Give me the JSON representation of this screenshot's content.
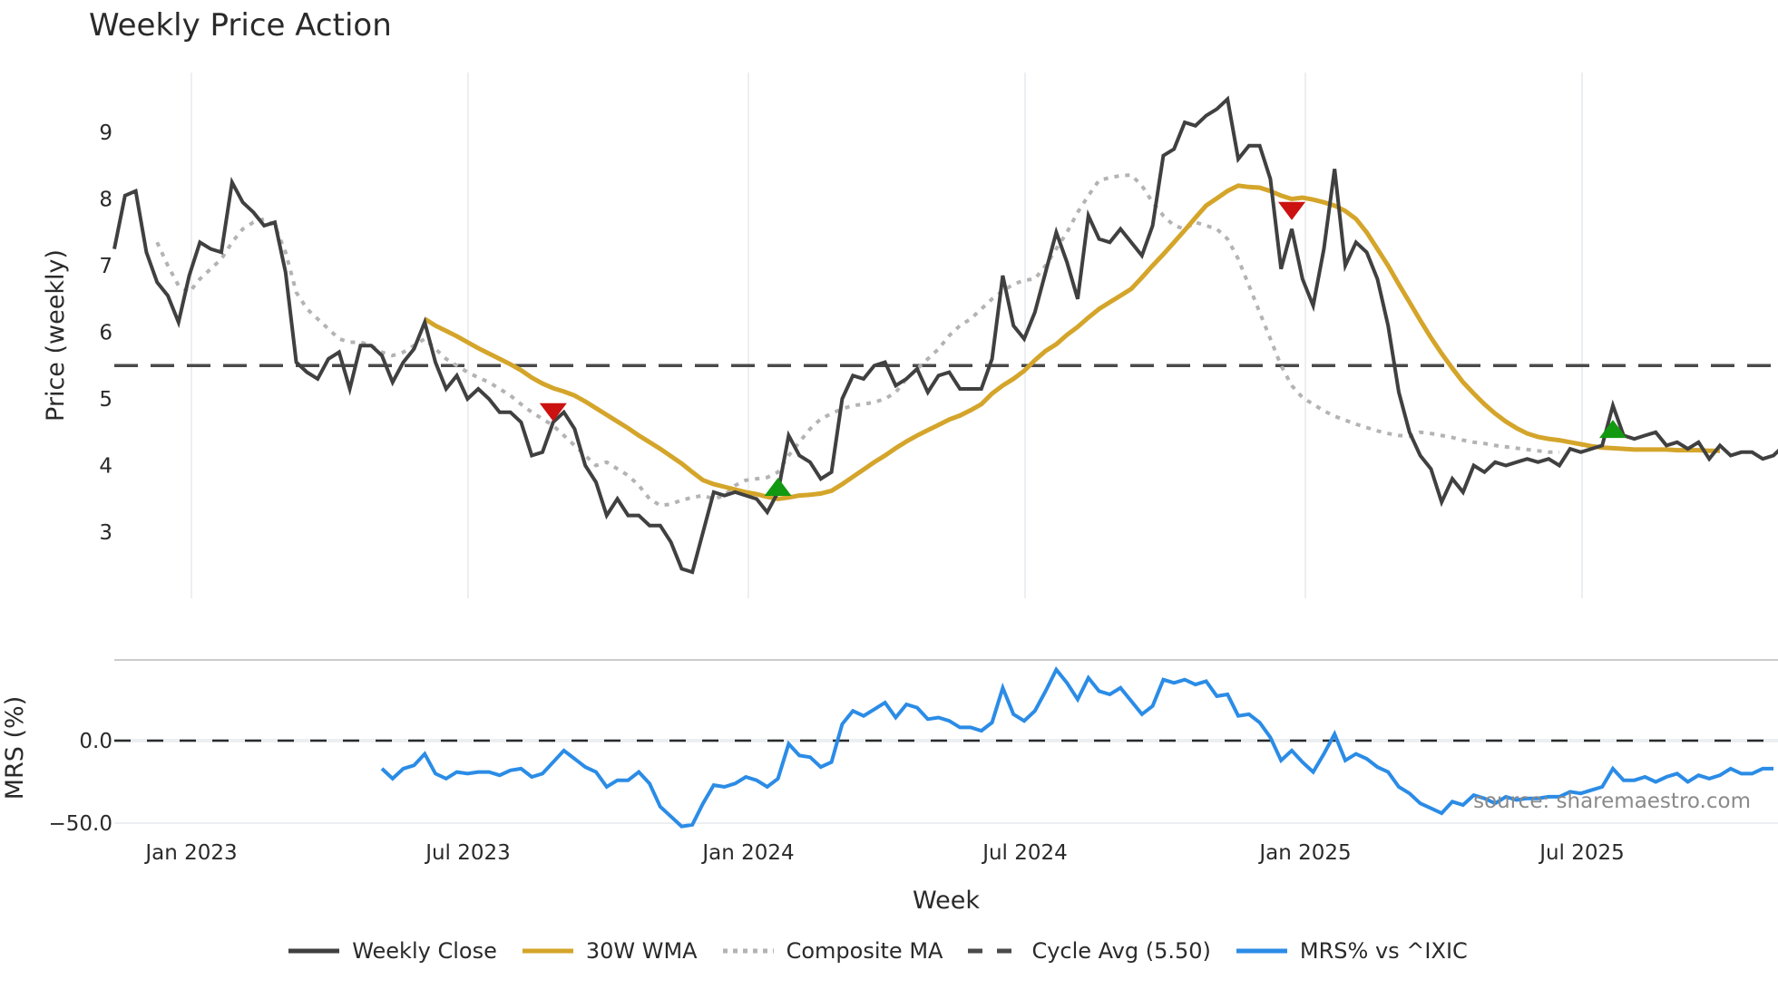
{
  "title": "Weekly Price Action",
  "colors": {
    "weekly_close": "#404040",
    "wma": "#d4a52a",
    "composite": "#b3b3b3",
    "cycle_avg": "#4a4a4a",
    "mrs": "#2b8ce6",
    "sell_marker": "#cc1111",
    "buy_marker": "#119911",
    "grid": "#eceff2"
  },
  "legend": [
    {
      "label": "Weekly Close",
      "style": "solid",
      "color": "#404040"
    },
    {
      "label": "30W WMA",
      "style": "solid",
      "color": "#d4a52a"
    },
    {
      "label": "Composite MA",
      "style": "dotted",
      "color": "#b3b3b3"
    },
    {
      "label": "Cycle Avg (5.50)",
      "style": "dashed",
      "color": "#4a4a4a"
    },
    {
      "label": "MRS% vs ^IXIC",
      "style": "solid",
      "color": "#2b8ce6"
    }
  ],
  "source_text": "source: sharemaestro.com",
  "chart_data": [
    {
      "type": "line",
      "title": "Weekly Price Action",
      "xlabel": "Week",
      "ylabel": "Price (weekly)",
      "x_tick_labels": [
        "Jan 2023",
        "Jul 2023",
        "Jan 2024",
        "Jul 2024",
        "Jan 2025",
        "Jul 2025"
      ],
      "y_ticks": [
        3,
        4,
        5,
        6,
        7,
        8,
        9
      ],
      "ylim": [
        2.0,
        9.9
      ],
      "x_start": "Nov 2022",
      "x_step": "1 week",
      "grid": "vertical",
      "cycle_avg": 5.5,
      "series": [
        {
          "name": "Weekly Close",
          "start_index": 0,
          "values": [
            7.25,
            8.05,
            8.12,
            7.2,
            6.75,
            6.55,
            6.15,
            6.85,
            7.35,
            7.25,
            7.2,
            8.25,
            7.95,
            7.8,
            7.6,
            7.65,
            6.9,
            5.55,
            5.4,
            5.3,
            5.6,
            5.7,
            5.15,
            5.8,
            5.8,
            5.65,
            5.25,
            5.55,
            5.75,
            6.15,
            5.55,
            5.15,
            5.35,
            5.0,
            5.15,
            5.0,
            4.8,
            4.8,
            4.65,
            4.15,
            4.2,
            4.65,
            4.8,
            4.55,
            4.0,
            3.75,
            3.25,
            3.5,
            3.25,
            3.25,
            3.1,
            3.1,
            2.85,
            2.45,
            2.4,
            3.0,
            3.6,
            3.55,
            3.6,
            3.55,
            3.5,
            3.3,
            3.6,
            4.45,
            4.15,
            4.05,
            3.8,
            3.9,
            5.0,
            5.35,
            5.3,
            5.5,
            5.55,
            5.2,
            5.3,
            5.45,
            5.1,
            5.35,
            5.4,
            5.15,
            5.15,
            5.15,
            5.6,
            6.85,
            6.1,
            5.9,
            6.3,
            6.9,
            7.5,
            7.05,
            6.5,
            7.75,
            7.4,
            7.35,
            7.55,
            7.35,
            7.15,
            7.6,
            8.65,
            8.75,
            9.15,
            9.1,
            9.25,
            9.35,
            9.5,
            8.6,
            8.8,
            8.8,
            8.3,
            6.95,
            7.55,
            6.8,
            6.4,
            7.25,
            8.45,
            7.0,
            7.35,
            7.2,
            6.8,
            6.1,
            5.1,
            4.5,
            4.15,
            3.95,
            3.45,
            3.8,
            3.6,
            4.0,
            3.9,
            4.05,
            4.0,
            4.05,
            4.1,
            4.05,
            4.1,
            4.0,
            4.25,
            4.2,
            4.25,
            4.3,
            4.9,
            4.45,
            4.4,
            4.45,
            4.5,
            4.3,
            4.35,
            4.25,
            4.35,
            4.1,
            4.3,
            4.15,
            4.2,
            4.2,
            4.1,
            4.15,
            4.3,
            4.1
          ]
        },
        {
          "name": "30W WMA",
          "start_index": 29,
          "values": [
            6.2,
            6.1,
            6.02,
            5.94,
            5.85,
            5.76,
            5.68,
            5.6,
            5.52,
            5.43,
            5.32,
            5.23,
            5.16,
            5.11,
            5.05,
            4.96,
            4.86,
            4.76,
            4.66,
            4.56,
            4.45,
            4.35,
            4.25,
            4.14,
            4.03,
            3.9,
            3.78,
            3.72,
            3.68,
            3.64,
            3.6,
            3.57,
            3.53,
            3.5,
            3.52,
            3.55,
            3.56,
            3.58,
            3.62,
            3.72,
            3.83,
            3.94,
            4.05,
            4.15,
            4.26,
            4.36,
            4.45,
            4.53,
            4.61,
            4.69,
            4.75,
            4.83,
            4.92,
            5.08,
            5.2,
            5.3,
            5.42,
            5.58,
            5.72,
            5.82,
            5.96,
            6.08,
            6.22,
            6.35,
            6.45,
            6.55,
            6.65,
            6.82,
            7.0,
            7.17,
            7.35,
            7.53,
            7.72,
            7.9,
            8.01,
            8.12,
            8.2,
            8.18,
            8.17,
            8.12,
            8.05,
            8.0,
            8.02,
            7.99,
            7.95,
            7.9,
            7.82,
            7.7,
            7.5,
            7.25,
            7.0,
            6.72,
            6.45,
            6.18,
            5.92,
            5.68,
            5.46,
            5.25,
            5.08,
            4.92,
            4.78,
            4.66,
            4.56,
            4.48,
            4.43,
            4.4,
            4.38,
            4.35,
            4.32,
            4.29,
            4.27,
            4.26,
            4.25,
            4.24,
            4.24,
            4.24,
            4.24,
            4.23,
            4.23,
            4.23,
            4.22,
            4.22
          ]
        },
        {
          "name": "Composite MA",
          "start_index": 4,
          "values": [
            7.35,
            7.0,
            6.7,
            6.6,
            6.8,
            6.95,
            7.1,
            7.35,
            7.55,
            7.65,
            7.7,
            7.6,
            7.2,
            6.6,
            6.35,
            6.2,
            6.05,
            5.9,
            5.85,
            5.85,
            5.8,
            5.7,
            5.65,
            5.7,
            5.8,
            5.9,
            5.75,
            5.6,
            5.5,
            5.4,
            5.32,
            5.25,
            5.15,
            5.05,
            4.92,
            4.8,
            4.7,
            4.6,
            4.45,
            4.3,
            4.15,
            4.0,
            4.05,
            3.95,
            3.85,
            3.7,
            3.5,
            3.4,
            3.42,
            3.48,
            3.52,
            3.55,
            3.5,
            3.55,
            3.7,
            3.78,
            3.8,
            3.82,
            3.9,
            4.15,
            4.35,
            4.55,
            4.7,
            4.78,
            4.85,
            4.9,
            4.92,
            4.95,
            5.0,
            5.1,
            5.3,
            5.45,
            5.6,
            5.75,
            5.95,
            6.1,
            6.2,
            6.35,
            6.5,
            6.62,
            6.72,
            6.78,
            6.8,
            7.0,
            7.25,
            7.5,
            7.8,
            8.05,
            8.28,
            8.32,
            8.35,
            8.36,
            8.2,
            7.95,
            7.75,
            7.6,
            7.55,
            7.65,
            7.6,
            7.55,
            7.4,
            7.1,
            6.7,
            6.3,
            5.9,
            5.5,
            5.2,
            5.02,
            4.92,
            4.82,
            4.74,
            4.68,
            4.62,
            4.57,
            4.52,
            4.48,
            4.45,
            4.44,
            4.5,
            4.48,
            4.45,
            4.42,
            4.38,
            4.35,
            4.33,
            4.3,
            4.28,
            4.26,
            4.24,
            4.22,
            4.2,
            4.2
          ]
        },
        {
          "name": "MRS% vs ^IXIC",
          "panel": "lower",
          "start_index": 25,
          "ylim": [
            -55,
            35
          ],
          "y_ticks": [
            -50.0,
            0.0
          ],
          "ylabel": "MRS (%)",
          "values": [
            -17,
            -23,
            -17,
            -15,
            -8,
            -20,
            -23,
            -19,
            -20,
            -19,
            -19,
            -21,
            -18,
            -17,
            -22,
            -20,
            -13,
            -6,
            -11,
            -16,
            -19,
            -28,
            -24,
            -24,
            -19,
            -26,
            -40,
            -46,
            -52,
            -51,
            -38,
            -27,
            -28,
            -26,
            -22,
            -24,
            -28,
            -23,
            -2,
            -9,
            -10,
            -16,
            -13,
            10,
            18,
            15,
            19,
            23,
            14,
            22,
            20,
            13,
            14,
            12,
            8,
            8,
            6,
            11,
            32,
            16,
            12,
            18,
            30,
            43,
            35,
            25,
            38,
            30,
            28,
            32,
            24,
            16,
            21,
            37,
            35,
            37,
            34,
            36,
            27,
            28,
            15,
            16,
            11,
            2,
            -12,
            -6,
            -13,
            -19,
            -8,
            4,
            -12,
            -8,
            -11,
            -16,
            -19,
            -28,
            -32,
            -38,
            -41,
            -44,
            -37,
            -39,
            -33,
            -35,
            -38,
            -34,
            -36,
            -35,
            -35,
            -34,
            -34,
            -31,
            -32,
            -30,
            -28,
            -17,
            -24,
            -24,
            -22,
            -25,
            -22,
            -20,
            -25,
            -21,
            -23,
            -21,
            -17,
            -20,
            -20,
            -17,
            -17
          ]
        }
      ],
      "markers": [
        {
          "type": "sell",
          "shape": "down-triangle",
          "index": 41,
          "value": 4.8,
          "label": "sell signal"
        },
        {
          "type": "buy",
          "shape": "up-triangle",
          "index": 62,
          "value": 3.68,
          "label": "buy signal"
        },
        {
          "type": "sell",
          "shape": "down-triangle",
          "index": 110,
          "value": 7.82,
          "label": "sell signal"
        },
        {
          "type": "buy",
          "shape": "up-triangle",
          "index": 140,
          "value": 4.55,
          "label": "buy signal"
        }
      ]
    }
  ]
}
